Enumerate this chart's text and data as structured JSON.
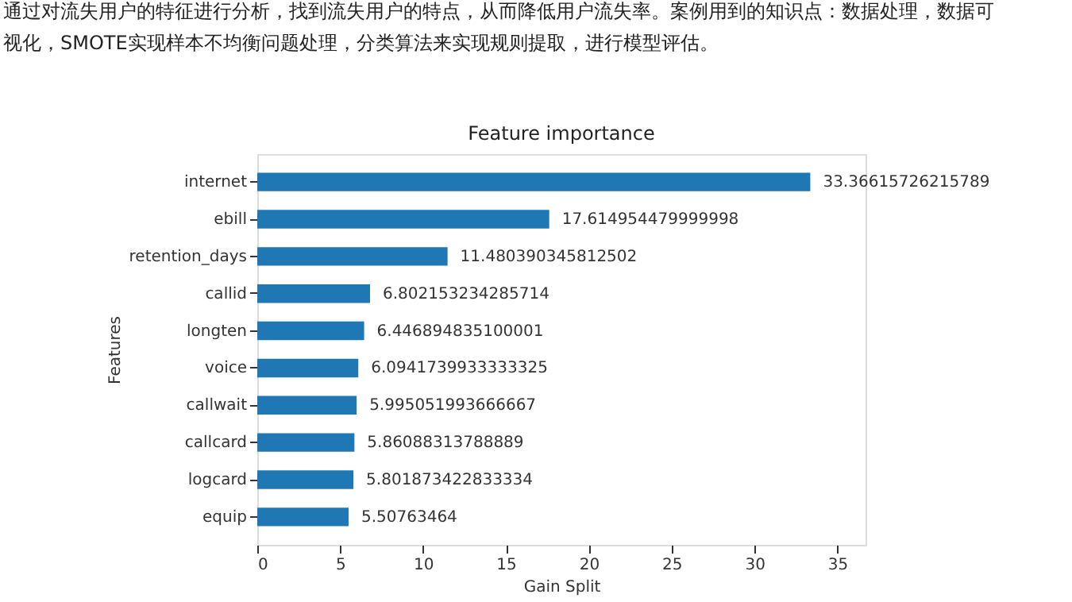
{
  "chart_data": {
    "type": "bar",
    "orientation": "horizontal",
    "title": "Feature importance",
    "xlabel": "Gain Split",
    "ylabel": "Features",
    "categories": [
      "internet",
      "ebill",
      "retention_days",
      "callid",
      "longten",
      "voice",
      "callwait",
      "callcard",
      "logcard",
      "equip"
    ],
    "values": [
      33.36615726215789,
      17.614954479999998,
      11.480390345812502,
      6.802153234285714,
      6.446894835100001,
      6.0941739933333325,
      5.995051993666667,
      5.86088313788889,
      5.801873422833334,
      5.50763464
    ],
    "color": "#1f77b4",
    "data_labels": true,
    "xlim": [
      0,
      36.7
    ],
    "xticks": [
      0,
      5,
      10,
      15,
      20,
      25,
      30,
      35
    ],
    "grid": false,
    "annotations": [
      "通过对流失用户的特征进行分析，找到流失用户的特点，从而降低用户流失率。案例用到的知识点：数据处理，数据可视化，SMOTE实现样本不均衡问题处理，分类算法来实现规则提取，进行模型评估。"
    ]
  }
}
